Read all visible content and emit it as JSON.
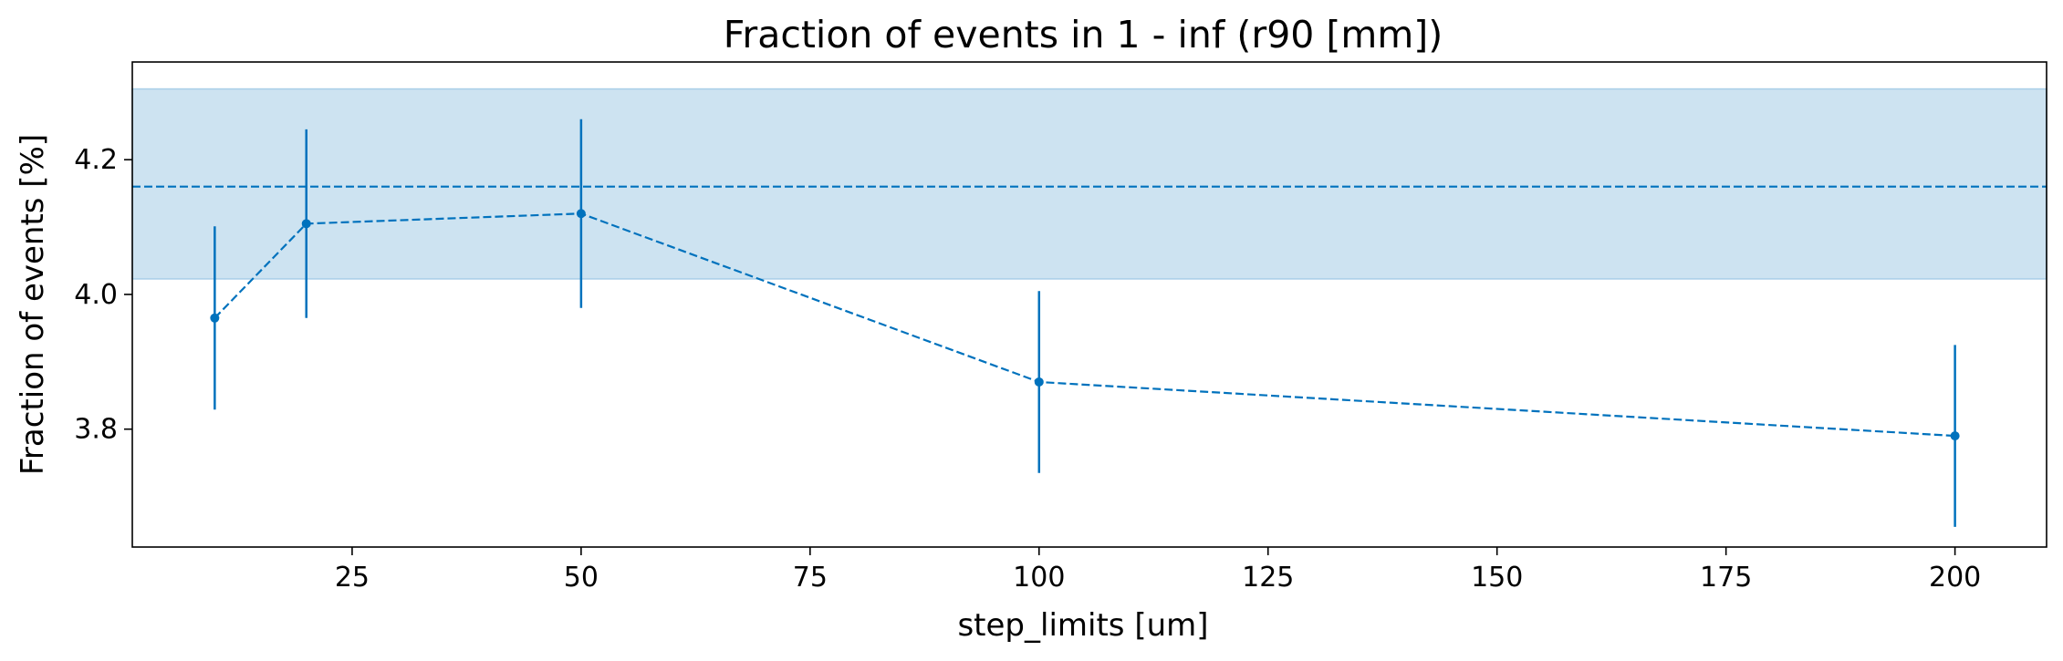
{
  "chart_data": {
    "type": "line",
    "title": "Fraction of events in 1 - inf (r90 [mm])",
    "xlabel": "step_limits [um]",
    "ylabel": "Fraction of events [%]",
    "xlim": [
      1,
      210
    ],
    "ylim": [
      3.625,
      4.345
    ],
    "x_ticks": [
      25,
      50,
      75,
      100,
      125,
      150,
      175,
      200
    ],
    "y_ticks": [
      3.8,
      4.0,
      4.2
    ],
    "x_tick_labels": [
      "25",
      "50",
      "75",
      "100",
      "125",
      "150",
      "175",
      "200"
    ],
    "y_tick_labels": [
      "3.8",
      "4.0",
      "4.2"
    ],
    "grid": false,
    "reference": {
      "value": 4.16,
      "band": [
        4.023,
        4.305
      ],
      "line_style": "dashed"
    },
    "series": [
      {
        "x": [
          10,
          20,
          50,
          100,
          200
        ],
        "y": [
          3.965,
          4.105,
          4.12,
          3.87,
          3.79
        ],
        "yerr": [
          0.136,
          0.14,
          0.14,
          0.135,
          0.135
        ],
        "line_style": "dashed",
        "marker": "circle"
      }
    ],
    "colors": {
      "series": "#0072bd",
      "band_fill": "#cde3f1",
      "band_edge": "#a9cfe8"
    }
  }
}
